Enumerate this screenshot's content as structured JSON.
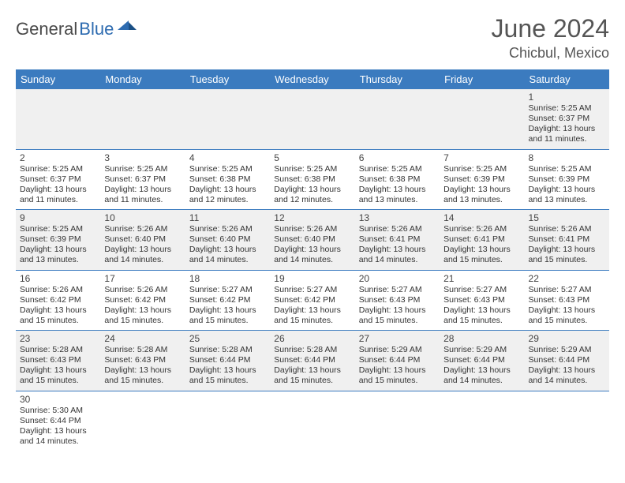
{
  "logo": {
    "part1": "General",
    "part2": "Blue"
  },
  "title": "June 2024",
  "location": "Chicbul, Mexico",
  "brand_color": "#3b7bbf",
  "weekdays": [
    "Sunday",
    "Monday",
    "Tuesday",
    "Wednesday",
    "Thursday",
    "Friday",
    "Saturday"
  ],
  "weeks": [
    [
      null,
      null,
      null,
      null,
      null,
      null,
      {
        "d": "1",
        "sr": "Sunrise: 5:25 AM",
        "ss": "Sunset: 6:37 PM",
        "dl1": "Daylight: 13 hours",
        "dl2": "and 11 minutes."
      }
    ],
    [
      {
        "d": "2",
        "sr": "Sunrise: 5:25 AM",
        "ss": "Sunset: 6:37 PM",
        "dl1": "Daylight: 13 hours",
        "dl2": "and 11 minutes."
      },
      {
        "d": "3",
        "sr": "Sunrise: 5:25 AM",
        "ss": "Sunset: 6:37 PM",
        "dl1": "Daylight: 13 hours",
        "dl2": "and 11 minutes."
      },
      {
        "d": "4",
        "sr": "Sunrise: 5:25 AM",
        "ss": "Sunset: 6:38 PM",
        "dl1": "Daylight: 13 hours",
        "dl2": "and 12 minutes."
      },
      {
        "d": "5",
        "sr": "Sunrise: 5:25 AM",
        "ss": "Sunset: 6:38 PM",
        "dl1": "Daylight: 13 hours",
        "dl2": "and 12 minutes."
      },
      {
        "d": "6",
        "sr": "Sunrise: 5:25 AM",
        "ss": "Sunset: 6:38 PM",
        "dl1": "Daylight: 13 hours",
        "dl2": "and 13 minutes."
      },
      {
        "d": "7",
        "sr": "Sunrise: 5:25 AM",
        "ss": "Sunset: 6:39 PM",
        "dl1": "Daylight: 13 hours",
        "dl2": "and 13 minutes."
      },
      {
        "d": "8",
        "sr": "Sunrise: 5:25 AM",
        "ss": "Sunset: 6:39 PM",
        "dl1": "Daylight: 13 hours",
        "dl2": "and 13 minutes."
      }
    ],
    [
      {
        "d": "9",
        "sr": "Sunrise: 5:25 AM",
        "ss": "Sunset: 6:39 PM",
        "dl1": "Daylight: 13 hours",
        "dl2": "and 13 minutes."
      },
      {
        "d": "10",
        "sr": "Sunrise: 5:26 AM",
        "ss": "Sunset: 6:40 PM",
        "dl1": "Daylight: 13 hours",
        "dl2": "and 14 minutes."
      },
      {
        "d": "11",
        "sr": "Sunrise: 5:26 AM",
        "ss": "Sunset: 6:40 PM",
        "dl1": "Daylight: 13 hours",
        "dl2": "and 14 minutes."
      },
      {
        "d": "12",
        "sr": "Sunrise: 5:26 AM",
        "ss": "Sunset: 6:40 PM",
        "dl1": "Daylight: 13 hours",
        "dl2": "and 14 minutes."
      },
      {
        "d": "13",
        "sr": "Sunrise: 5:26 AM",
        "ss": "Sunset: 6:41 PM",
        "dl1": "Daylight: 13 hours",
        "dl2": "and 14 minutes."
      },
      {
        "d": "14",
        "sr": "Sunrise: 5:26 AM",
        "ss": "Sunset: 6:41 PM",
        "dl1": "Daylight: 13 hours",
        "dl2": "and 15 minutes."
      },
      {
        "d": "15",
        "sr": "Sunrise: 5:26 AM",
        "ss": "Sunset: 6:41 PM",
        "dl1": "Daylight: 13 hours",
        "dl2": "and 15 minutes."
      }
    ],
    [
      {
        "d": "16",
        "sr": "Sunrise: 5:26 AM",
        "ss": "Sunset: 6:42 PM",
        "dl1": "Daylight: 13 hours",
        "dl2": "and 15 minutes."
      },
      {
        "d": "17",
        "sr": "Sunrise: 5:26 AM",
        "ss": "Sunset: 6:42 PM",
        "dl1": "Daylight: 13 hours",
        "dl2": "and 15 minutes."
      },
      {
        "d": "18",
        "sr": "Sunrise: 5:27 AM",
        "ss": "Sunset: 6:42 PM",
        "dl1": "Daylight: 13 hours",
        "dl2": "and 15 minutes."
      },
      {
        "d": "19",
        "sr": "Sunrise: 5:27 AM",
        "ss": "Sunset: 6:42 PM",
        "dl1": "Daylight: 13 hours",
        "dl2": "and 15 minutes."
      },
      {
        "d": "20",
        "sr": "Sunrise: 5:27 AM",
        "ss": "Sunset: 6:43 PM",
        "dl1": "Daylight: 13 hours",
        "dl2": "and 15 minutes."
      },
      {
        "d": "21",
        "sr": "Sunrise: 5:27 AM",
        "ss": "Sunset: 6:43 PM",
        "dl1": "Daylight: 13 hours",
        "dl2": "and 15 minutes."
      },
      {
        "d": "22",
        "sr": "Sunrise: 5:27 AM",
        "ss": "Sunset: 6:43 PM",
        "dl1": "Daylight: 13 hours",
        "dl2": "and 15 minutes."
      }
    ],
    [
      {
        "d": "23",
        "sr": "Sunrise: 5:28 AM",
        "ss": "Sunset: 6:43 PM",
        "dl1": "Daylight: 13 hours",
        "dl2": "and 15 minutes."
      },
      {
        "d": "24",
        "sr": "Sunrise: 5:28 AM",
        "ss": "Sunset: 6:43 PM",
        "dl1": "Daylight: 13 hours",
        "dl2": "and 15 minutes."
      },
      {
        "d": "25",
        "sr": "Sunrise: 5:28 AM",
        "ss": "Sunset: 6:44 PM",
        "dl1": "Daylight: 13 hours",
        "dl2": "and 15 minutes."
      },
      {
        "d": "26",
        "sr": "Sunrise: 5:28 AM",
        "ss": "Sunset: 6:44 PM",
        "dl1": "Daylight: 13 hours",
        "dl2": "and 15 minutes."
      },
      {
        "d": "27",
        "sr": "Sunrise: 5:29 AM",
        "ss": "Sunset: 6:44 PM",
        "dl1": "Daylight: 13 hours",
        "dl2": "and 15 minutes."
      },
      {
        "d": "28",
        "sr": "Sunrise: 5:29 AM",
        "ss": "Sunset: 6:44 PM",
        "dl1": "Daylight: 13 hours",
        "dl2": "and 14 minutes."
      },
      {
        "d": "29",
        "sr": "Sunrise: 5:29 AM",
        "ss": "Sunset: 6:44 PM",
        "dl1": "Daylight: 13 hours",
        "dl2": "and 14 minutes."
      }
    ],
    [
      {
        "d": "30",
        "sr": "Sunrise: 5:30 AM",
        "ss": "Sunset: 6:44 PM",
        "dl1": "Daylight: 13 hours",
        "dl2": "and 14 minutes."
      },
      null,
      null,
      null,
      null,
      null,
      null
    ]
  ]
}
